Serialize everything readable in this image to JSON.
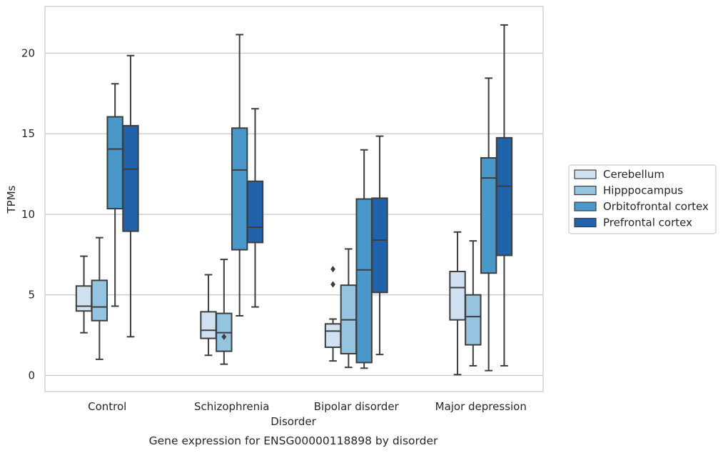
{
  "chart_data": {
    "type": "box",
    "title": "",
    "caption": "Gene expression for ENSG00000118898 by disorder",
    "xlabel": "Disorder",
    "ylabel": "TPMs",
    "ylim": [
      -1,
      22.9
    ],
    "yticks": [
      0,
      5,
      10,
      15,
      20
    ],
    "grid": "horizontal",
    "legend_position": "right",
    "categories": [
      "Control",
      "Schizophrenia",
      "Bipolar disorder",
      "Major depression"
    ],
    "series": [
      {
        "name": "Cerebellum",
        "color": "#d0e1f2",
        "boxes": [
          {
            "whisker_low": 2.65,
            "q1": 4.0,
            "median": 4.3,
            "q3": 5.55,
            "whisker_high": 7.4,
            "outliers": []
          },
          {
            "whisker_low": 1.25,
            "q1": 2.3,
            "median": 2.8,
            "q3": 3.95,
            "whisker_high": 6.25,
            "outliers": []
          },
          {
            "whisker_low": 0.9,
            "q1": 1.75,
            "median": 2.75,
            "q3": 3.2,
            "whisker_high": 3.5,
            "outliers": [
              5.65,
              6.6
            ]
          },
          {
            "whisker_low": 0.05,
            "q1": 3.45,
            "median": 5.45,
            "q3": 6.45,
            "whisker_high": 8.9,
            "outliers": []
          }
        ]
      },
      {
        "name": "Hipppocampus",
        "color": "#94c4df",
        "boxes": [
          {
            "whisker_low": 1.0,
            "q1": 3.4,
            "median": 4.25,
            "q3": 5.9,
            "whisker_high": 8.55,
            "outliers": []
          },
          {
            "whisker_low": 0.7,
            "q1": 1.5,
            "median": 2.65,
            "q3": 3.85,
            "whisker_high": 7.2,
            "outliers": [
              2.4
            ]
          },
          {
            "whisker_low": 0.5,
            "q1": 1.35,
            "median": 3.45,
            "q3": 5.6,
            "whisker_high": 7.85,
            "outliers": []
          },
          {
            "whisker_low": 0.6,
            "q1": 1.9,
            "median": 3.65,
            "q3": 5.0,
            "whisker_high": 8.35,
            "outliers": []
          }
        ]
      },
      {
        "name": "Orbitofrontal cortex",
        "color": "#4a98c9",
        "boxes": [
          {
            "whisker_low": 4.3,
            "q1": 10.35,
            "median": 14.05,
            "q3": 16.05,
            "whisker_high": 18.1,
            "outliers": []
          },
          {
            "whisker_low": 3.7,
            "q1": 7.8,
            "median": 12.75,
            "q3": 15.35,
            "whisker_high": 21.15,
            "outliers": []
          },
          {
            "whisker_low": 0.45,
            "q1": 0.8,
            "median": 6.55,
            "q3": 10.95,
            "whisker_high": 14.0,
            "outliers": []
          },
          {
            "whisker_low": 0.3,
            "q1": 6.35,
            "median": 12.25,
            "q3": 13.5,
            "whisker_high": 18.45,
            "outliers": []
          }
        ]
      },
      {
        "name": "Prefrontal cortex",
        "color": "#2163aa",
        "boxes": [
          {
            "whisker_low": 2.4,
            "q1": 8.95,
            "median": 12.8,
            "q3": 15.5,
            "whisker_high": 19.85,
            "outliers": []
          },
          {
            "whisker_low": 4.25,
            "q1": 8.25,
            "median": 9.2,
            "q3": 12.05,
            "whisker_high": 16.55,
            "outliers": []
          },
          {
            "whisker_low": 1.3,
            "q1": 5.15,
            "median": 8.4,
            "q3": 11.0,
            "whisker_high": 14.85,
            "outliers": []
          },
          {
            "whisker_low": 0.6,
            "q1": 7.45,
            "median": 11.75,
            "q3": 14.75,
            "whisker_high": 21.75,
            "outliers": []
          }
        ]
      }
    ]
  }
}
